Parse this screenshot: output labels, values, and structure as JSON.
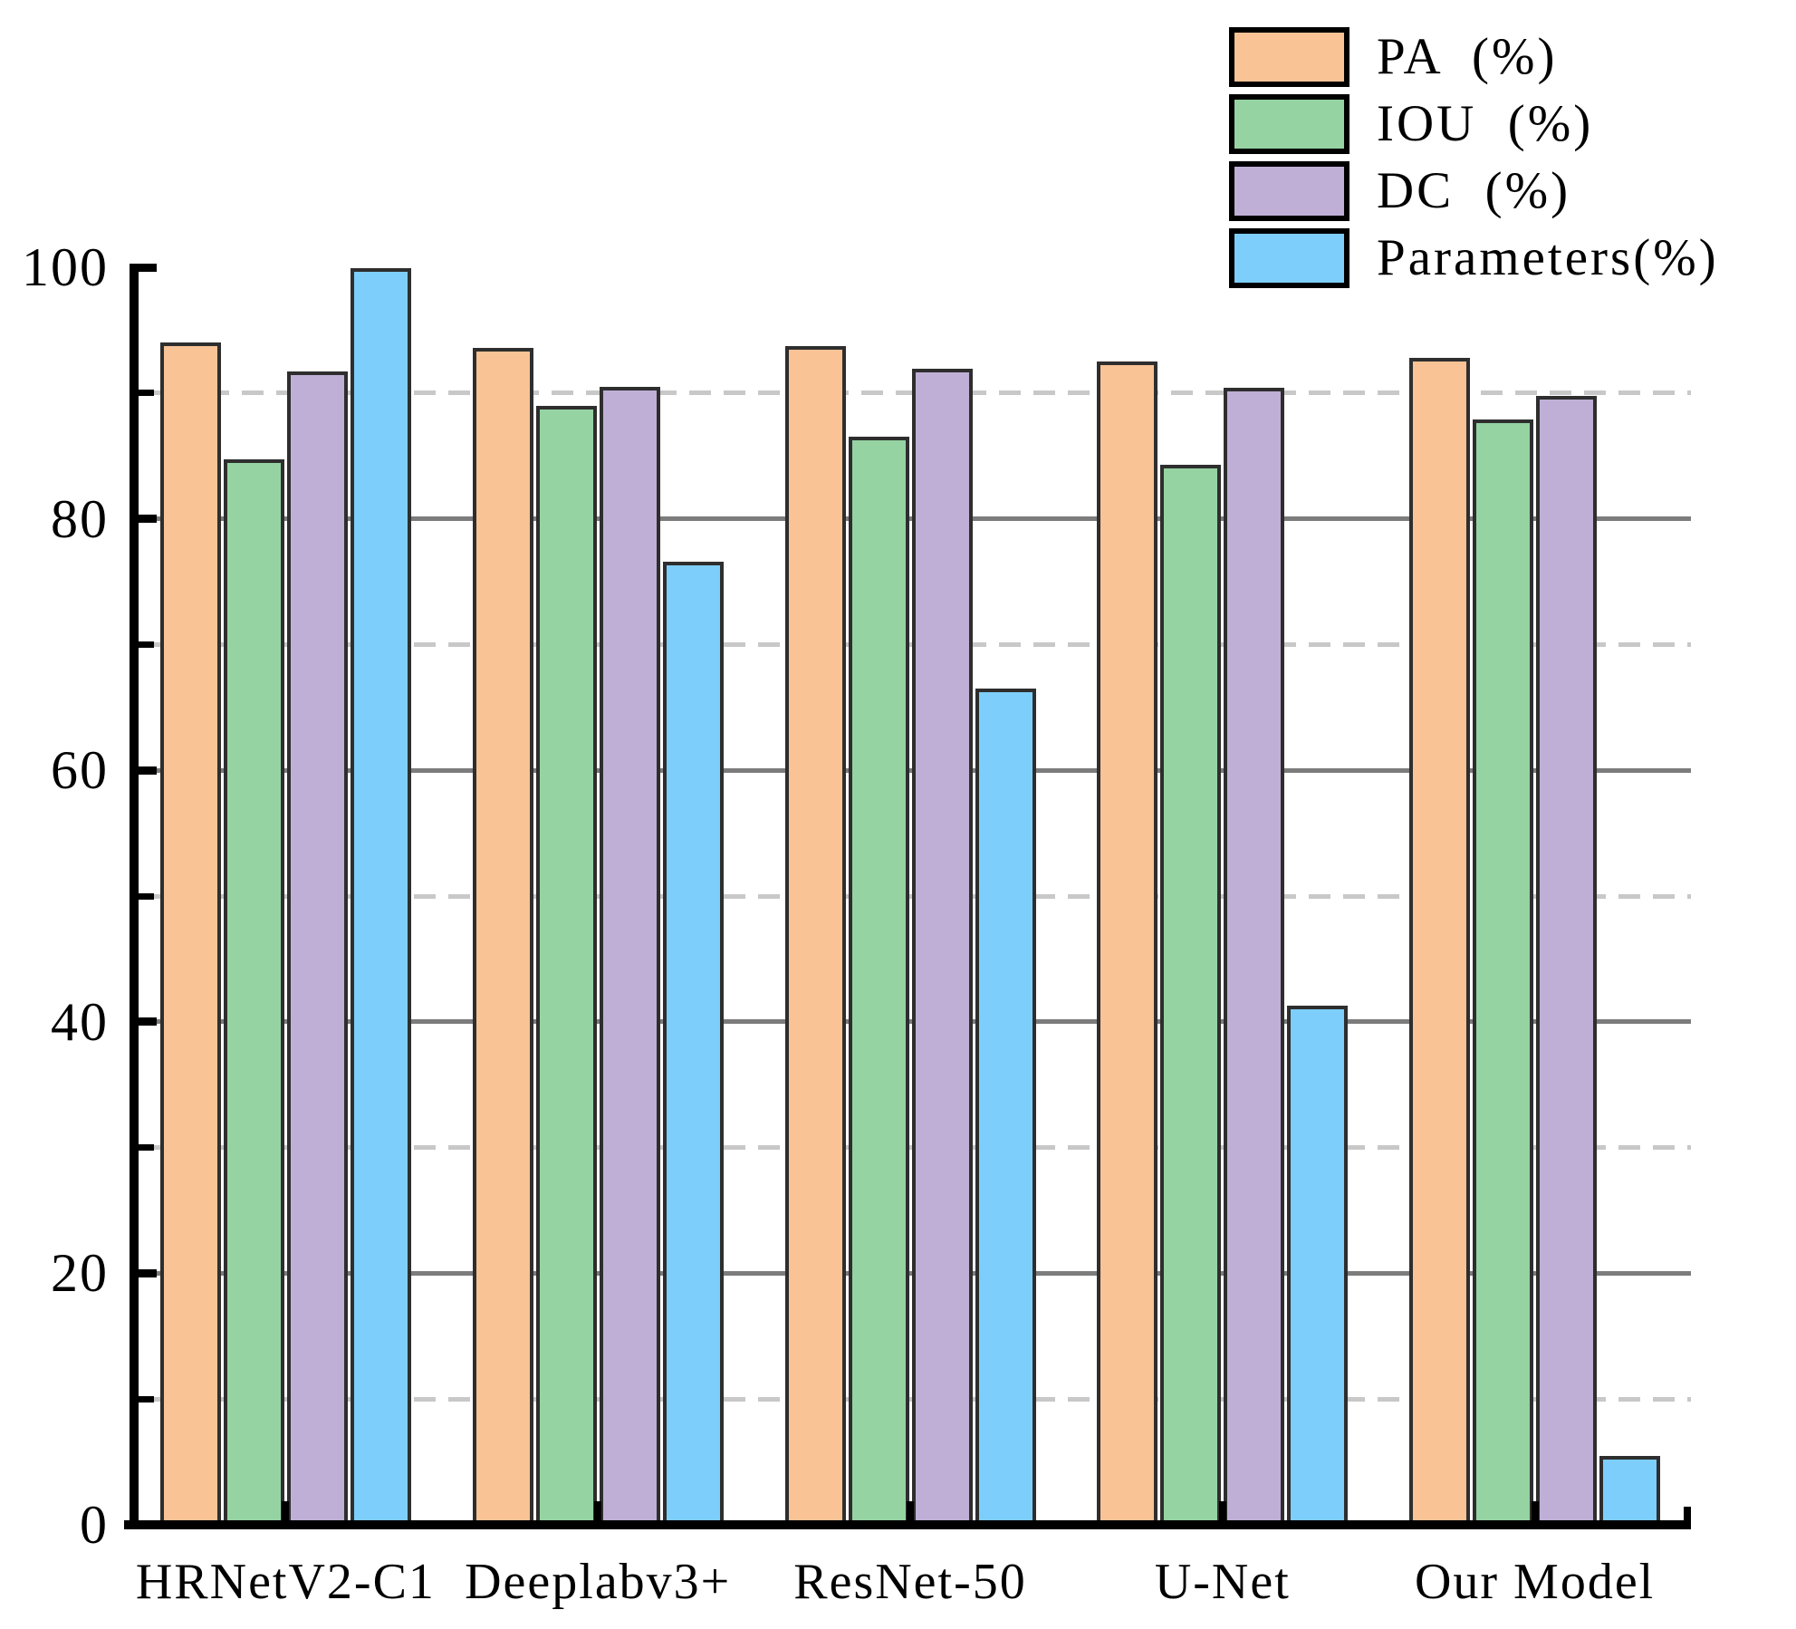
{
  "chart_data": {
    "type": "bar",
    "title": "",
    "xlabel": "",
    "ylabel": "",
    "categories": [
      "HRNetV2-C1",
      "Deeplabv3+",
      "ResNet-50",
      "U-Net",
      "Our Model"
    ],
    "series": [
      {
        "name": "PA (%)",
        "legend_label": "PA  (%)",
        "color": "#F9C396",
        "values": [
          94.0,
          93.6,
          93.7,
          92.5,
          92.8
        ]
      },
      {
        "name": "IOU (%)",
        "legend_label": "IOU  (%)",
        "color": "#95D3A3",
        "values": [
          84.7,
          89.0,
          86.5,
          84.3,
          87.9
        ]
      },
      {
        "name": "DC (%)",
        "legend_label": "DC  (%)",
        "color": "#BFAFD6",
        "values": [
          91.7,
          90.5,
          91.9,
          90.4,
          89.8
        ]
      },
      {
        "name": "Parameters(%)",
        "legend_label": "Parameters(%)",
        "color": "#7DCEFA",
        "values": [
          99.9,
          76.6,
          66.5,
          41.3,
          5.5
        ]
      }
    ],
    "ylim": [
      0,
      100
    ],
    "yticks": [
      0,
      20,
      40,
      60,
      80,
      100
    ],
    "ytick_labels": [
      "0",
      "20",
      "40",
      "60",
      "80",
      "100"
    ],
    "major_gridlines": [
      20,
      40,
      60,
      80
    ],
    "minor_gridlines": [
      10,
      30,
      50,
      70,
      90
    ],
    "grid": "on",
    "legend_position": "upper right",
    "bar_edge_color": "#2E2E2E",
    "major_grid_color": "#7C7C7C",
    "minor_grid_color": "#C8C8C8",
    "axis_color": "#000000"
  }
}
